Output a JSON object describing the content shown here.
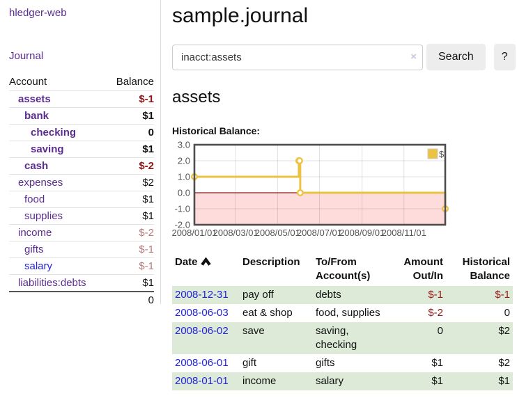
{
  "app": {
    "title": "hledger-web"
  },
  "sidebar": {
    "journal_label": "Journal",
    "accounts_table": {
      "headers": [
        "Account",
        "Balance"
      ],
      "rows": [
        {
          "label": "assets",
          "depth": 1,
          "bold": true,
          "balance": "$-1",
          "neg": "strong"
        },
        {
          "label": "bank",
          "depth": 2,
          "bold": true,
          "balance": "$1"
        },
        {
          "label": "checking",
          "depth": 3,
          "bold": true,
          "balance": "0"
        },
        {
          "label": "saving",
          "depth": 3,
          "bold": true,
          "balance": "$1"
        },
        {
          "label": "cash",
          "depth": 2,
          "bold": true,
          "balance": "$-2",
          "neg": "strong"
        },
        {
          "label": "expenses",
          "depth": 1,
          "bold": false,
          "balance": "$2"
        },
        {
          "label": "food",
          "depth": 2,
          "bold": false,
          "balance": "$1"
        },
        {
          "label": "supplies",
          "depth": 2,
          "bold": false,
          "balance": "$1"
        },
        {
          "label": "income",
          "depth": 1,
          "bold": false,
          "balance": "$-2",
          "neg": "muted"
        },
        {
          "label": "gifts",
          "depth": 2,
          "bold": false,
          "balance": "$-1",
          "neg": "muted"
        },
        {
          "label": "salary",
          "depth": 2,
          "bold": false,
          "balance": "$-1",
          "neg": "muted",
          "link_color": "blue"
        },
        {
          "label": "liabilities:debts",
          "depth": 1,
          "bold": false,
          "balance": "$1"
        }
      ],
      "total": "0"
    }
  },
  "main": {
    "title": "sample.journal",
    "search": {
      "value": "inacct:assets",
      "clear_icon": "×",
      "button": "Search",
      "help_button": "?"
    },
    "account_heading": "assets",
    "chart_label": "Historical Balance:"
  },
  "chart_data": {
    "type": "line",
    "step": true,
    "title": "Historical Balance",
    "series": [
      {
        "name": "$",
        "color": "#edc240",
        "points": [
          [
            "2008-01-01",
            1
          ],
          [
            "2008-06-01",
            2
          ],
          [
            "2008-06-02",
            2
          ],
          [
            "2008-06-03",
            0
          ],
          [
            "2008-12-31",
            -1
          ]
        ]
      }
    ],
    "ylim": [
      -2,
      3
    ],
    "yticks": [
      3.0,
      2.0,
      1.0,
      0.0,
      -1.0,
      -2.0
    ],
    "xticks": [
      "2008/01/01",
      "2008/03/01",
      "2008/05/01",
      "2008/07/01",
      "2008/09/01",
      "2008/11/01"
    ],
    "legend": [
      "$"
    ],
    "legend_position": "top-right",
    "grid": true,
    "negative_region_fill": "#ffdcdc",
    "zero_line_color": "#8b1a1a",
    "border_color": "#4d4d4d",
    "axis_text_color": "#545454"
  },
  "register_table": {
    "headers": [
      {
        "line1": "Date",
        "line2": "",
        "align": "left",
        "sort": "asc"
      },
      {
        "line1": "Description",
        "line2": "",
        "align": "left"
      },
      {
        "line1": "To/From",
        "line2": "Account(s)",
        "align": "left"
      },
      {
        "line1": "Amount",
        "line2": "Out/In",
        "align": "right"
      },
      {
        "line1": "Historical",
        "line2": "Balance",
        "align": "right"
      }
    ],
    "rows": [
      {
        "date": "2008-12-31",
        "description": "pay off",
        "accounts": "debts",
        "amount": "$-1",
        "amount_neg": true,
        "balance": "$-1",
        "balance_neg": true
      },
      {
        "date": "2008-06-03",
        "description": "eat & shop",
        "accounts": "food, supplies",
        "amount": "$-2",
        "amount_neg": true,
        "balance": "0",
        "balance_neg": false
      },
      {
        "date": "2008-06-02",
        "description": "save",
        "accounts": "saving, checking",
        "amount": "0",
        "amount_neg": false,
        "balance": "$2",
        "balance_neg": false
      },
      {
        "date": "2008-06-01",
        "description": "gift",
        "accounts": "gifts",
        "amount": "$1",
        "amount_neg": false,
        "balance": "$2",
        "balance_neg": false
      },
      {
        "date": "2008-01-01",
        "description": "income",
        "accounts": "salary",
        "amount": "$1",
        "amount_neg": false,
        "balance": "$1",
        "balance_neg": false
      }
    ]
  },
  "colors": {
    "link_purple": "#5b2d90",
    "link_blue": "#2323dd",
    "negative_strong": "#941616",
    "negative_muted": "#b87a7a",
    "stripe_green": "#dcead7",
    "chart_gold": "#edc240"
  }
}
